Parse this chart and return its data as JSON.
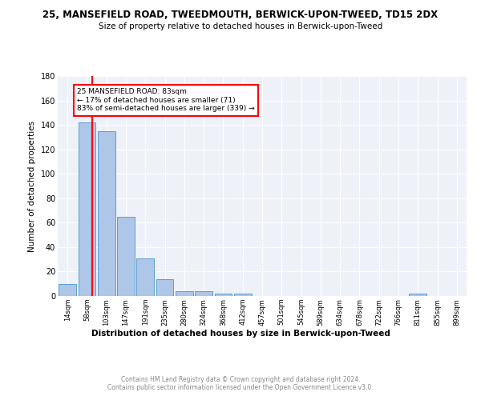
{
  "title1": "25, MANSEFIELD ROAD, TWEEDMOUTH, BERWICK-UPON-TWEED, TD15 2DX",
  "title2": "Size of property relative to detached houses in Berwick-upon-Tweed",
  "xlabel": "Distribution of detached houses by size in Berwick-upon-Tweed",
  "ylabel": "Number of detached properties",
  "footer1": "Contains HM Land Registry data © Crown copyright and database right 2024.",
  "footer2": "Contains public sector information licensed under the Open Government Licence v3.0.",
  "bar_labels": [
    "14sqm",
    "58sqm",
    "103sqm",
    "147sqm",
    "191sqm",
    "235sqm",
    "280sqm",
    "324sqm",
    "368sqm",
    "412sqm",
    "457sqm",
    "501sqm",
    "545sqm",
    "589sqm",
    "634sqm",
    "678sqm",
    "722sqm",
    "766sqm",
    "811sqm",
    "855sqm",
    "899sqm"
  ],
  "bar_values": [
    10,
    142,
    135,
    65,
    31,
    14,
    4,
    4,
    2,
    2,
    0,
    0,
    0,
    0,
    0,
    0,
    0,
    0,
    2,
    0,
    0
  ],
  "bar_color": "#aec6e8",
  "bar_edge_color": "#5a9fd4",
  "bg_color": "#eef2f8",
  "grid_color": "#ffffff",
  "annotation_text": "25 MANSEFIELD ROAD: 83sqm\n← 17% of detached houses are smaller (71)\n83% of semi-detached houses are larger (339) →",
  "annotation_box_color": "#ffffff",
  "annotation_border_color": "red",
  "vline_x": 1.28,
  "vline_color": "red",
  "ylim": [
    0,
    180
  ],
  "yticks": [
    0,
    20,
    40,
    60,
    80,
    100,
    120,
    140,
    160,
    180
  ]
}
